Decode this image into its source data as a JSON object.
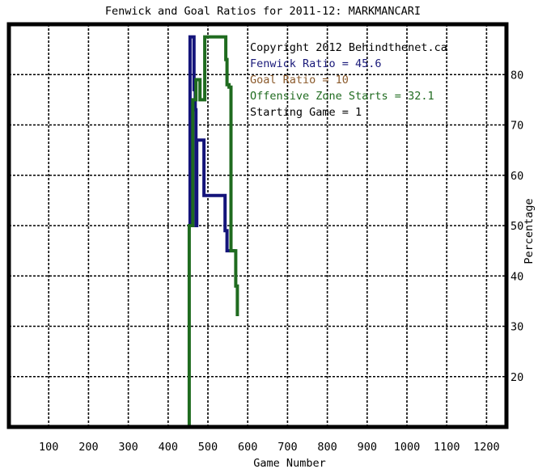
{
  "chart_data": {
    "type": "line",
    "title": "Fenwick and Goal Ratios for 2011-12: MARKMANCARI",
    "xlabel": "Game Number",
    "ylabel": "Percentage",
    "xlim": [
      0,
      1250
    ],
    "ylim": [
      10,
      90
    ],
    "xticks": [
      100,
      200,
      300,
      400,
      500,
      600,
      700,
      800,
      900,
      1000,
      1100,
      1200
    ],
    "yticks": [
      20,
      30,
      40,
      50,
      60,
      70,
      80
    ],
    "grid": true,
    "legend_position": "top-right",
    "annotations": [
      {
        "text": "Copyright 2012 Behindthenet.ca",
        "color": "#000000"
      },
      {
        "text": "Fenwick Ratio = 45.6",
        "color": "#1a1a7a"
      },
      {
        "text": "Goal Ratio = 10",
        "color": "#8b5a2b"
      },
      {
        "text": "Offensive Zone Starts = 32.1",
        "color": "#1f6b1f"
      },
      {
        "text": "Starting Game = 1",
        "color": "#000000"
      }
    ],
    "series": [
      {
        "color": "#14147a",
        "points": [
          [
            455,
            50
          ],
          [
            455,
            87.5
          ],
          [
            465,
            87.5
          ],
          [
            465,
            77
          ],
          [
            468,
            77
          ],
          [
            468,
            73
          ],
          [
            470,
            73
          ],
          [
            470,
            50
          ],
          [
            472,
            50
          ],
          [
            472,
            67
          ],
          [
            490,
            67
          ],
          [
            490,
            56
          ],
          [
            540,
            56
          ],
          [
            540,
            56
          ],
          [
            543,
            56
          ],
          [
            543,
            49
          ],
          [
            548,
            49
          ],
          [
            548,
            45
          ],
          [
            570,
            45
          ]
        ]
      },
      {
        "color": "#1f6b1f",
        "points": [
          [
            453,
            10
          ],
          [
            453,
            50
          ],
          [
            458,
            50
          ],
          [
            458,
            50
          ],
          [
            462,
            50
          ],
          [
            462,
            75
          ],
          [
            470,
            75
          ],
          [
            470,
            79
          ],
          [
            480,
            79
          ],
          [
            480,
            75
          ],
          [
            492,
            75
          ],
          [
            492,
            87.5
          ],
          [
            545,
            87.5
          ],
          [
            545,
            83
          ],
          [
            548,
            83
          ],
          [
            548,
            78
          ],
          [
            553,
            78
          ],
          [
            553,
            77.5
          ],
          [
            558,
            77.5
          ],
          [
            558,
            45
          ],
          [
            570,
            45
          ],
          [
            570,
            38
          ],
          [
            574,
            38
          ],
          [
            574,
            32
          ]
        ]
      }
    ]
  }
}
